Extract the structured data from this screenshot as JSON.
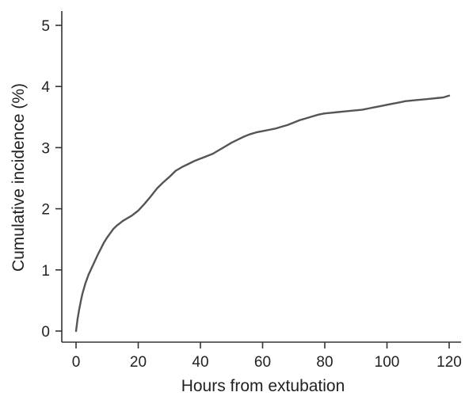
{
  "chart_data": {
    "type": "line",
    "title": "",
    "xlabel": "Hours from extubation",
    "ylabel": "Cumulative incidence (%)",
    "xlim": [
      0,
      120
    ],
    "ylim": [
      0,
      5
    ],
    "xticks": [
      0,
      20,
      40,
      60,
      80,
      100,
      120
    ],
    "yticks": [
      0,
      1,
      2,
      3,
      4,
      5
    ],
    "grid": false,
    "legend": "none",
    "series": [
      {
        "color": "#555555",
        "x": [
          0,
          0.5,
          1,
          1.5,
          2,
          3,
          4,
          5,
          6,
          7,
          8,
          9,
          10,
          11,
          12,
          13,
          14,
          15,
          16,
          17,
          18,
          19,
          20,
          22,
          24,
          26,
          28,
          30,
          32,
          34,
          36,
          38,
          40,
          42,
          44,
          46,
          48,
          50,
          52,
          54,
          56,
          58,
          60,
          62,
          64,
          66,
          68,
          70,
          72,
          74,
          76,
          78,
          80,
          82,
          84,
          86,
          88,
          90,
          92,
          94,
          96,
          98,
          100,
          102,
          104,
          106,
          108,
          110,
          112,
          114,
          116,
          118,
          120
        ],
        "y": [
          0,
          0.2,
          0.35,
          0.48,
          0.6,
          0.78,
          0.92,
          1.03,
          1.14,
          1.25,
          1.35,
          1.45,
          1.53,
          1.6,
          1.67,
          1.72,
          1.76,
          1.8,
          1.83,
          1.86,
          1.89,
          1.93,
          1.97,
          2.08,
          2.2,
          2.33,
          2.43,
          2.52,
          2.62,
          2.68,
          2.73,
          2.78,
          2.82,
          2.86,
          2.9,
          2.96,
          3.02,
          3.08,
          3.13,
          3.18,
          3.22,
          3.25,
          3.27,
          3.29,
          3.31,
          3.34,
          3.37,
          3.41,
          3.45,
          3.48,
          3.51,
          3.54,
          3.56,
          3.57,
          3.58,
          3.59,
          3.6,
          3.61,
          3.62,
          3.64,
          3.66,
          3.68,
          3.7,
          3.72,
          3.74,
          3.76,
          3.77,
          3.78,
          3.79,
          3.8,
          3.81,
          3.82,
          3.85
        ]
      }
    ]
  }
}
